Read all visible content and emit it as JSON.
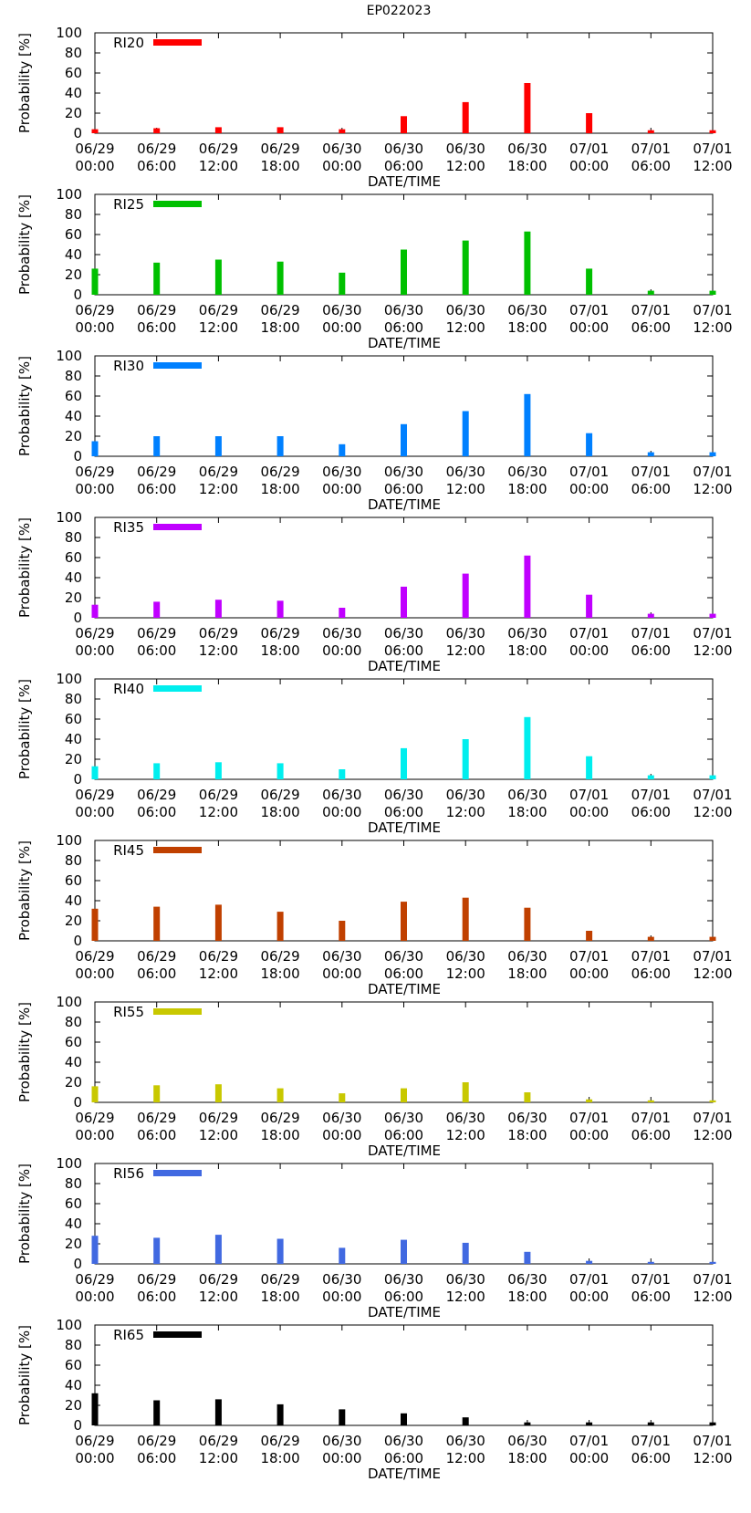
{
  "figure_title": "EP022023",
  "chart_data": [
    {
      "type": "bar",
      "legend": "RI20",
      "color": "#ff0000",
      "values": [
        4,
        5,
        6,
        6,
        4,
        17,
        31,
        50,
        20,
        3,
        3
      ]
    },
    {
      "type": "bar",
      "legend": "RI25",
      "color": "#00c000",
      "values": [
        26,
        32,
        35,
        33,
        22,
        45,
        54,
        63,
        26,
        4,
        4
      ]
    },
    {
      "type": "bar",
      "legend": "RI30",
      "color": "#0080ff",
      "values": [
        15,
        20,
        20,
        20,
        12,
        32,
        45,
        62,
        23,
        4,
        4
      ]
    },
    {
      "type": "bar",
      "legend": "RI35",
      "color": "#c000ff",
      "values": [
        13,
        16,
        18,
        17,
        10,
        31,
        44,
        62,
        23,
        4,
        4
      ]
    },
    {
      "type": "bar",
      "legend": "RI40",
      "color": "#00eeee",
      "values": [
        13,
        16,
        17,
        16,
        10,
        31,
        40,
        62,
        23,
        4,
        4
      ]
    },
    {
      "type": "bar",
      "legend": "RI45",
      "color": "#c04000",
      "values": [
        32,
        34,
        36,
        29,
        20,
        39,
        43,
        33,
        10,
        4,
        4
      ]
    },
    {
      "type": "bar",
      "legend": "RI55",
      "color": "#c8c800",
      "values": [
        16,
        17,
        18,
        14,
        9,
        14,
        20,
        10,
        3,
        2,
        2
      ]
    },
    {
      "type": "bar",
      "legend": "RI56",
      "color": "#4169e1",
      "values": [
        28,
        26,
        29,
        25,
        16,
        24,
        21,
        12,
        3,
        2,
        2
      ]
    },
    {
      "type": "bar",
      "legend": "RI65",
      "color": "#000000",
      "values": [
        32,
        25,
        26,
        21,
        16,
        12,
        8,
        3,
        3,
        3,
        3
      ]
    }
  ],
  "axes": {
    "xlabel": "DATE/TIME",
    "ylabel": "Probability [%]",
    "ylim": [
      0,
      100
    ],
    "yticks": [
      "0",
      "20",
      "40",
      "60",
      "80",
      "100"
    ],
    "xticks": [
      {
        "date": "06/29",
        "time": "00:00"
      },
      {
        "date": "06/29",
        "time": "06:00"
      },
      {
        "date": "06/29",
        "time": "12:00"
      },
      {
        "date": "06/29",
        "time": "18:00"
      },
      {
        "date": "06/30",
        "time": "00:00"
      },
      {
        "date": "06/30",
        "time": "06:00"
      },
      {
        "date": "06/30",
        "time": "12:00"
      },
      {
        "date": "06/30",
        "time": "18:00"
      },
      {
        "date": "07/01",
        "time": "00:00"
      },
      {
        "date": "07/01",
        "time": "06:00"
      },
      {
        "date": "07/01",
        "time": "12:00"
      }
    ]
  }
}
